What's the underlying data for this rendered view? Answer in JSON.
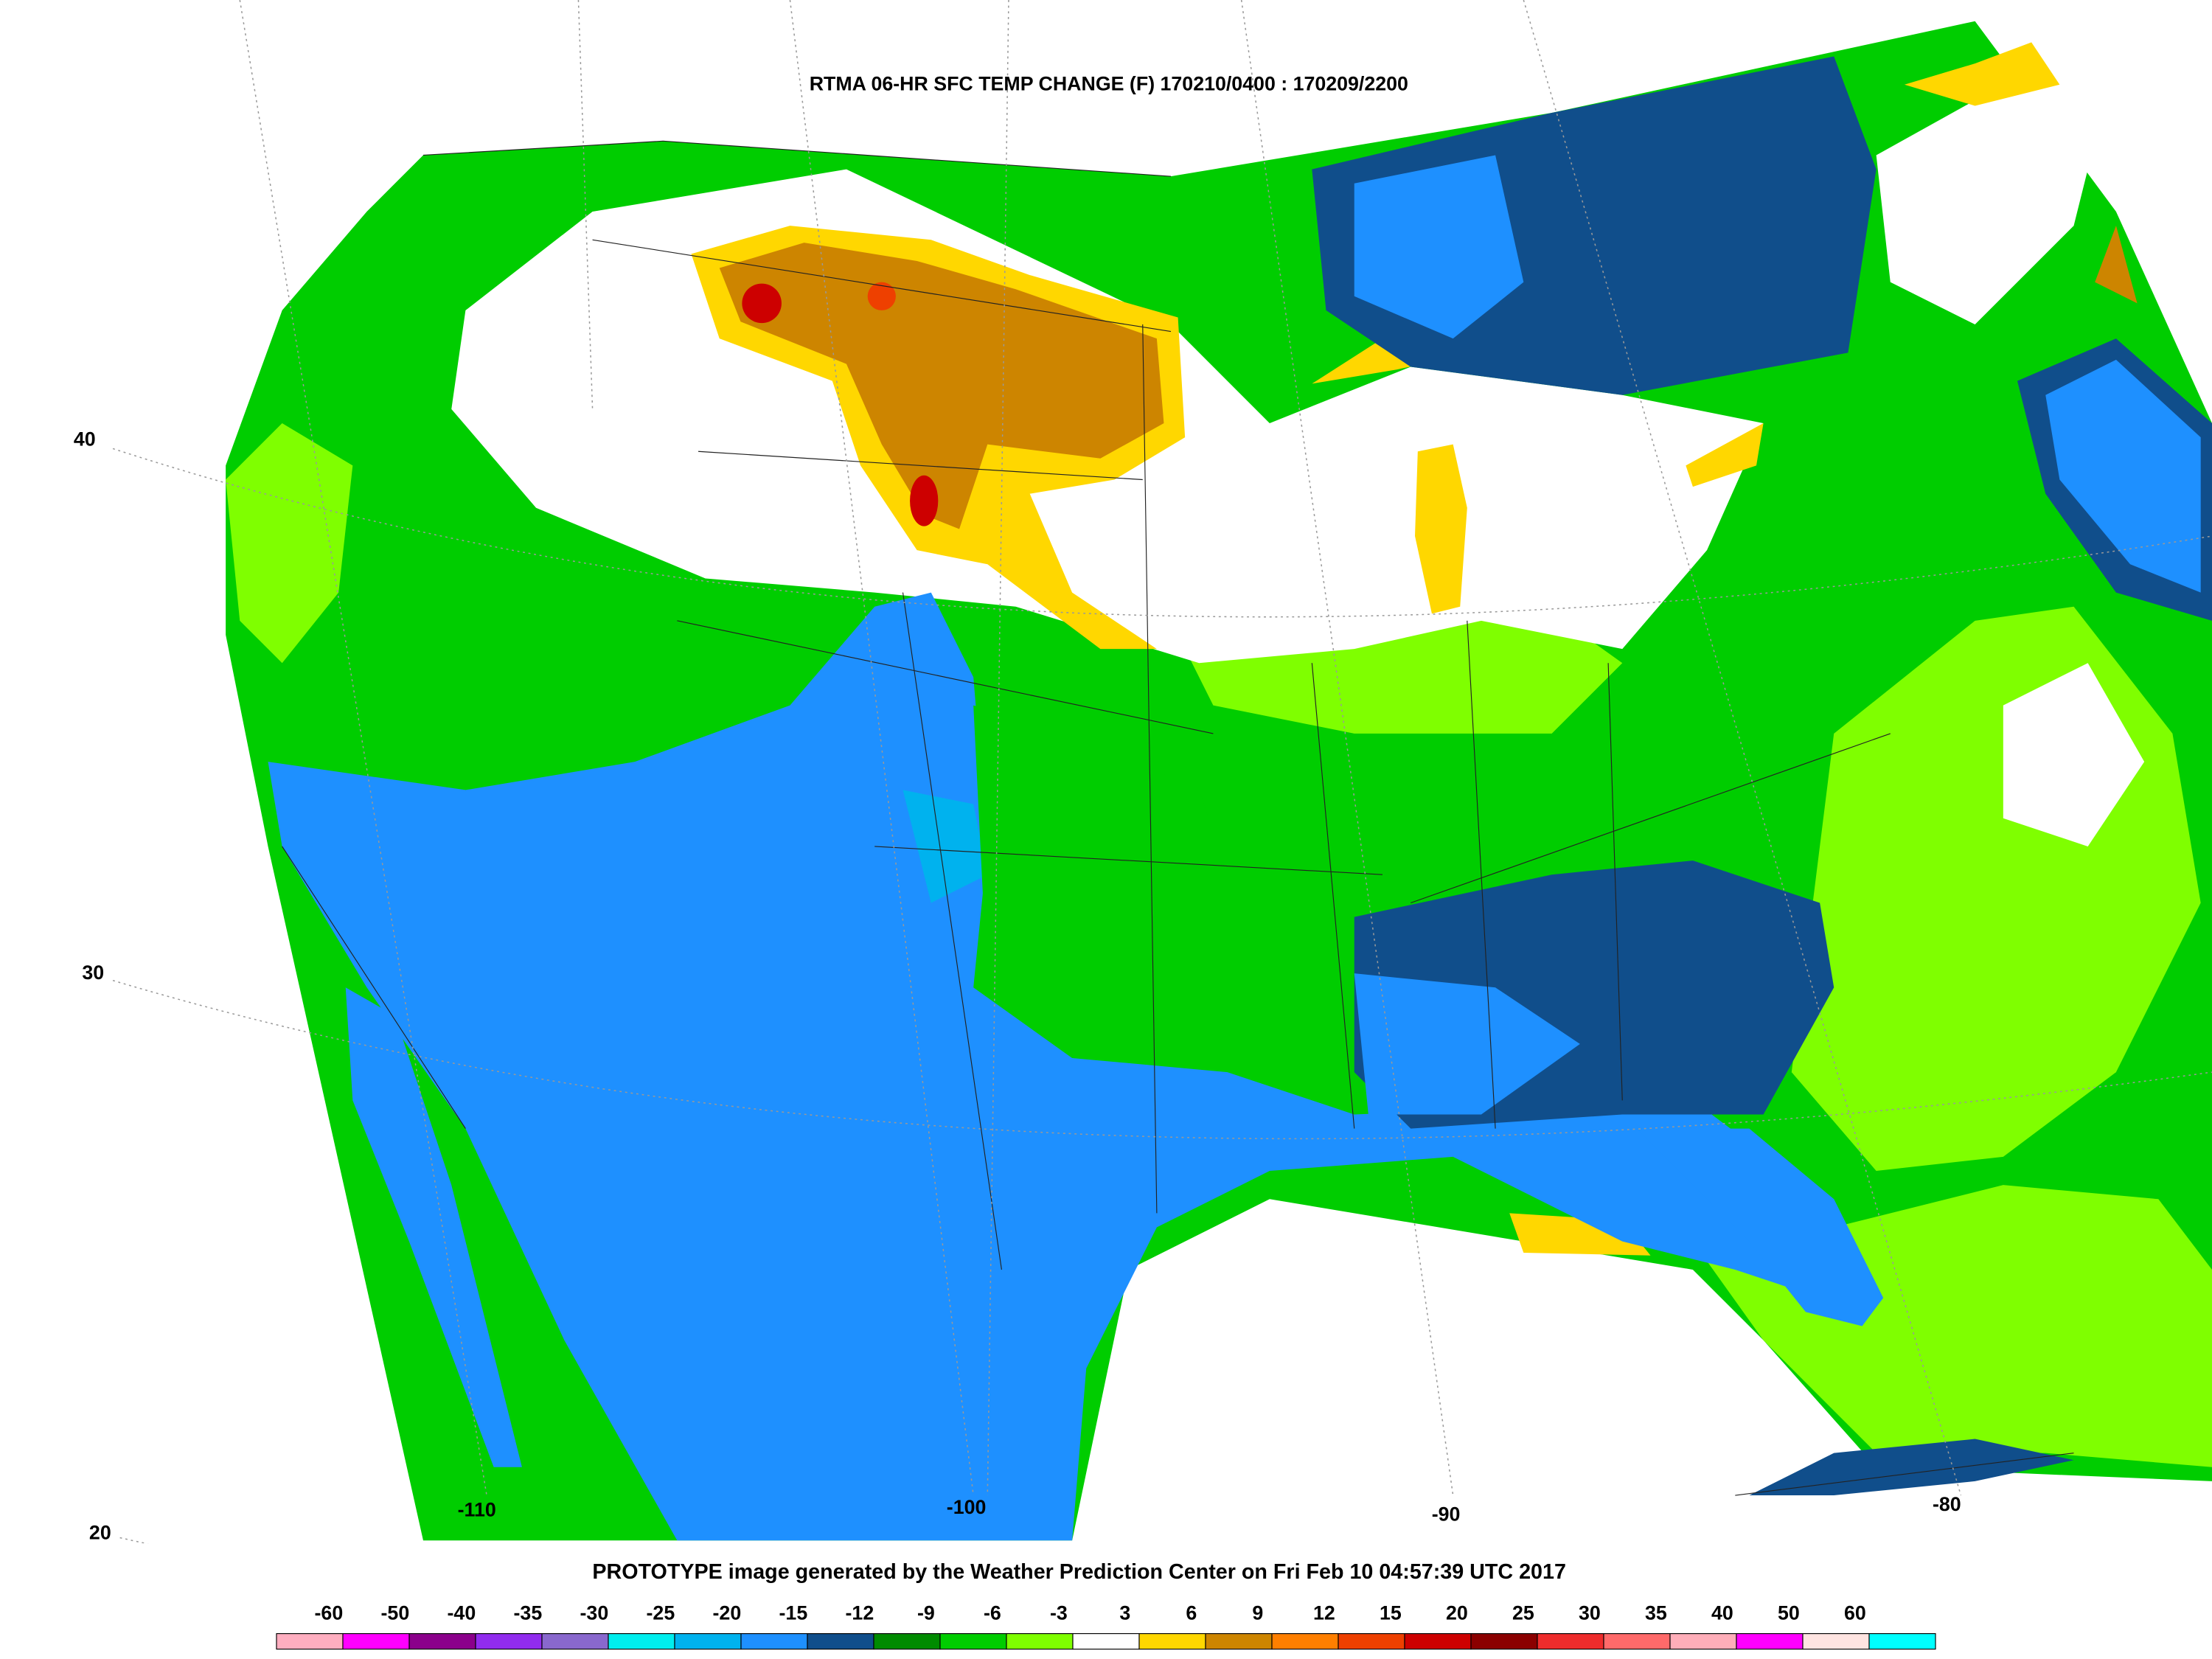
{
  "title": "RTMA 06-HR SFC TEMP CHANGE (F) 170210/0400 : 170209/2200",
  "footer": "PROTOTYPE image generated by the Weather Prediction Center on Fri Feb 10 04:57:39 UTC 2017",
  "latitude_labels": [
    "40",
    "30",
    "20"
  ],
  "longitude_labels": [
    "-110",
    "-100",
    "-90",
    "-80"
  ],
  "legend": {
    "labels": [
      "-60",
      "-50",
      "-40",
      "-35",
      "-30",
      "-25",
      "-20",
      "-15",
      "-12",
      "-9",
      "-6",
      "-3",
      "3",
      "6",
      "9",
      "12",
      "15",
      "20",
      "25",
      "30",
      "35",
      "40",
      "50",
      "60"
    ],
    "colors": [
      "#ffaec0",
      "#ff00ff",
      "#8b008b",
      "#912cee",
      "#8968cd",
      "#00eeee",
      "#00b2ee",
      "#1e90ff",
      "#104e8b",
      "#008b00",
      "#00cd00",
      "#7fff00",
      "#ffffff",
      "#ffd700",
      "#cd8500",
      "#ff7f00",
      "#ee4000",
      "#cd0000",
      "#8b0000",
      "#ee2c2c",
      "#ff6a6a",
      "#ffaeb9",
      "#ff00ff",
      "#ffe4e1",
      "#00ffff"
    ]
  }
}
